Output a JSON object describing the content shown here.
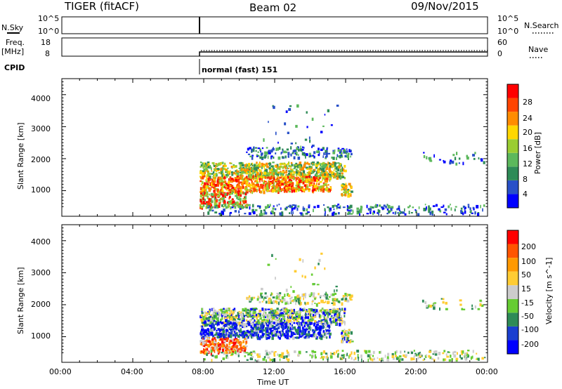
{
  "header": {
    "radar": "TIGER (fitACF)",
    "beam": "Beam 02",
    "date": "09/Nov/2015"
  },
  "summary_panels": {
    "nsky_label": "N.Sky",
    "nsky_ticks": [
      "10^5",
      "10^0"
    ],
    "nsearch_label": "N.Search",
    "nsearch_ticks": [
      "10^5",
      "10^0"
    ],
    "freq_label": "Freq.",
    "freq_unit": "[MHz]",
    "freq_ticks": [
      "18",
      "8"
    ],
    "nave_label": "Nave",
    "nave_ticks": [
      "60",
      "0"
    ],
    "cpid_label": "CPID",
    "cpid_value": "normal (fast) 151"
  },
  "chart_data": [
    {
      "type": "heatmap",
      "ylabel": "Slant Range [km]",
      "xlabel": "",
      "ylim": [
        200,
        4500
      ],
      "yticks": [
        "4000",
        "3000",
        "2000",
        "1000"
      ],
      "colorbar_label": "Power [dB]",
      "colorbar_ticks": [
        "28",
        "24",
        "20",
        "16",
        "12",
        "8",
        "4"
      ],
      "colorbar_colors": [
        "#0000ff",
        "#2850c8",
        "#2e8b57",
        "#5cb85c",
        "#9acd32",
        "#ffd700",
        "#ff8c00",
        "#ff4500",
        "#ff0000"
      ]
    },
    {
      "type": "heatmap",
      "ylabel": "Slant Range [km]",
      "xlabel": "Time UT",
      "ylim": [
        200,
        4500
      ],
      "yticks": [
        "4000",
        "3000",
        "2000",
        "1000"
      ],
      "xticks": [
        "00:00",
        "04:00",
        "08:00",
        "12:00",
        "16:00",
        "20:00",
        "00:00"
      ],
      "colorbar_label": "Velocity [m s^-1]",
      "colorbar_ticks": [
        "200",
        "100",
        "50",
        "15",
        "-15",
        "-50",
        "-100",
        "-200"
      ],
      "colorbar_colors": [
        "#0000ff",
        "#1a3fd0",
        "#2e8b57",
        "#66cc33",
        "#cccccc",
        "#ffcc33",
        "#ff9900",
        "#ff5500",
        "#ff0000"
      ]
    }
  ]
}
